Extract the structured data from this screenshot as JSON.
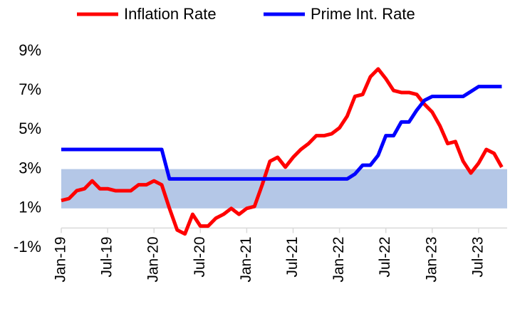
{
  "chart_data": {
    "type": "line",
    "categories": [
      "Jan-19",
      null,
      null,
      null,
      null,
      null,
      "Jul-19",
      null,
      null,
      null,
      null,
      null,
      "Jan-20",
      null,
      null,
      null,
      null,
      null,
      "Jul-20",
      null,
      null,
      null,
      null,
      null,
      "Jan-21",
      null,
      null,
      null,
      null,
      null,
      "Jul-21",
      null,
      null,
      null,
      null,
      null,
      "Jan-22",
      null,
      null,
      null,
      null,
      null,
      "Jul-22",
      null,
      null,
      null,
      null,
      null,
      "Jan-23",
      null,
      null,
      null,
      null,
      null,
      "Jul-23",
      null,
      null,
      null
    ],
    "series": [
      {
        "name": "Inflation Rate",
        "color": "#ff0000",
        "values": [
          1.4,
          1.5,
          1.9,
          2.0,
          2.4,
          2.0,
          2.0,
          1.9,
          1.9,
          1.9,
          2.2,
          2.2,
          2.4,
          2.2,
          1.0,
          -0.1,
          -0.3,
          0.7,
          0.1,
          0.1,
          0.5,
          0.7,
          1.0,
          0.7,
          1.0,
          1.1,
          2.2,
          3.4,
          3.6,
          3.1,
          3.6,
          4.0,
          4.3,
          4.7,
          4.7,
          4.8,
          5.1,
          5.7,
          6.7,
          6.8,
          7.7,
          8.1,
          7.6,
          7.0,
          6.9,
          6.9,
          6.8,
          6.3,
          5.9,
          5.2,
          4.3,
          4.4,
          3.4,
          2.8,
          3.3,
          4.0,
          3.8,
          3.1
        ]
      },
      {
        "name": "Prime Int. Rate",
        "color": "#0000ff",
        "values": [
          4.0,
          4.0,
          4.0,
          4.0,
          4.0,
          4.0,
          4.0,
          4.0,
          4.0,
          4.0,
          4.0,
          4.0,
          4.0,
          4.0,
          2.5,
          2.5,
          2.5,
          2.5,
          2.5,
          2.5,
          2.5,
          2.5,
          2.5,
          2.5,
          2.5,
          2.5,
          2.5,
          2.5,
          2.5,
          2.5,
          2.5,
          2.5,
          2.5,
          2.5,
          2.5,
          2.5,
          2.5,
          2.5,
          2.75,
          3.2,
          3.2,
          3.7,
          4.7,
          4.7,
          5.4,
          5.4,
          6.0,
          6.5,
          6.7,
          6.7,
          6.7,
          6.7,
          6.7,
          6.95,
          7.2,
          7.2,
          7.2,
          7.2
        ]
      }
    ],
    "shaded_range": [
      1,
      3
    ],
    "shaded_color": "#b4c7e7",
    "ylim": [
      -1,
      9
    ],
    "yticks": [
      {
        "value": -1,
        "label": "-1%"
      },
      {
        "value": 1,
        "label": "1%"
      },
      {
        "value": 3,
        "label": "3%"
      },
      {
        "value": 5,
        "label": "5%"
      },
      {
        "value": 7,
        "label": "7%"
      },
      {
        "value": 9,
        "label": "9%"
      }
    ],
    "grid": false,
    "legend": "top"
  }
}
